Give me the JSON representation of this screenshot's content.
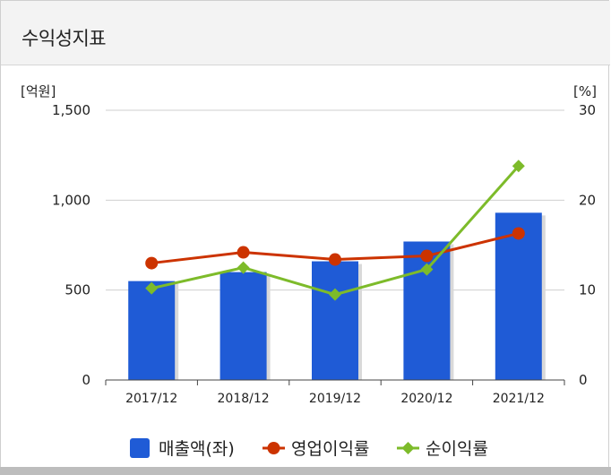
{
  "header": {
    "title": "수익성지표"
  },
  "colors": {
    "bar": "#1f5bd6",
    "operating": "#cc3300",
    "net": "#7dbb2a",
    "grid": "#cfcfcf"
  },
  "chart_data": {
    "type": "bar",
    "categories": [
      "2017/12",
      "2018/12",
      "2019/12",
      "2020/12",
      "2021/12"
    ],
    "y_left": {
      "unit": "[억원]",
      "ylim": [
        0,
        1500
      ],
      "ticks": [
        "1,500",
        "1,000",
        "500",
        "0"
      ],
      "tick_values": [
        1500,
        1000,
        500,
        0
      ]
    },
    "y_right": {
      "unit": "[%]",
      "ylim": [
        0,
        30
      ],
      "ticks": [
        "30",
        "20",
        "10",
        "0"
      ],
      "tick_values": [
        30,
        20,
        10,
        0
      ]
    },
    "series": [
      {
        "name": "매출액(좌)",
        "type": "bar",
        "axis": "left",
        "values": [
          550,
          600,
          660,
          770,
          930
        ]
      },
      {
        "name": "영업이익률",
        "type": "line",
        "axis": "right",
        "values": [
          13.0,
          14.2,
          13.4,
          13.8,
          16.3
        ]
      },
      {
        "name": "순이익률",
        "type": "line",
        "axis": "right",
        "values": [
          10.2,
          12.5,
          9.5,
          12.3,
          23.8
        ]
      }
    ],
    "grid": true,
    "legend": "bottom"
  }
}
